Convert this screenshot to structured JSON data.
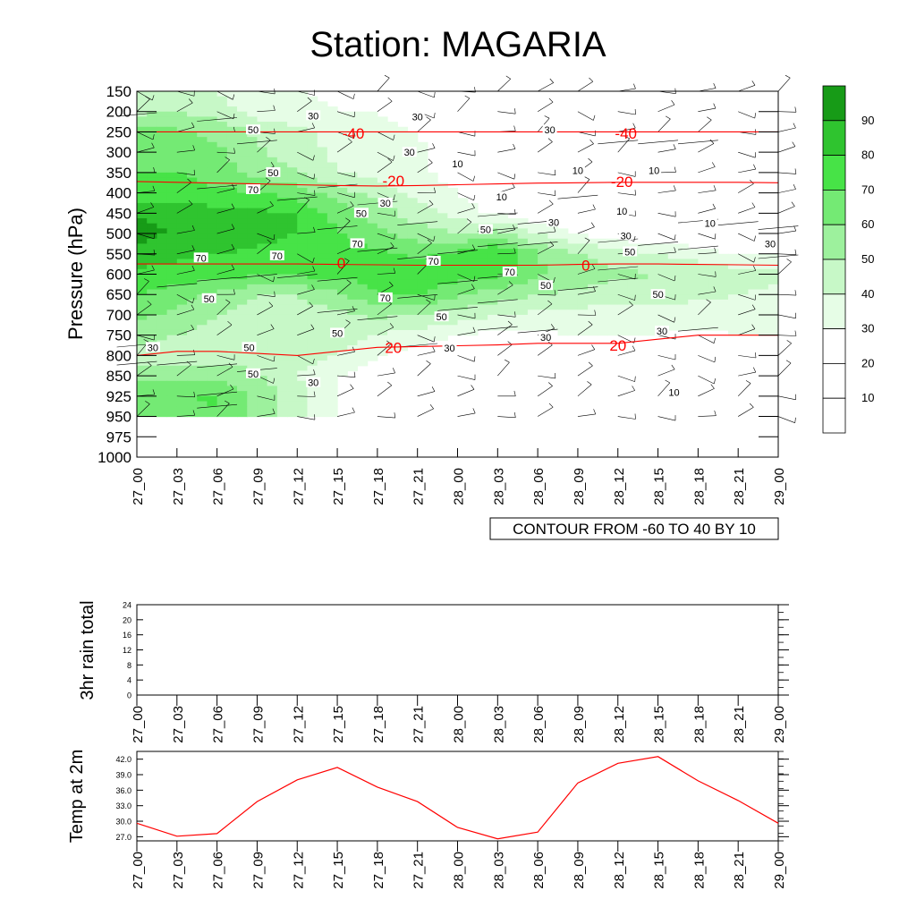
{
  "title": "Station: MAGARIA",
  "colors": {
    "green_levels": [
      "#ffffff",
      "#ffffff",
      "#ffffff",
      "#e6fde6",
      "#c7f8c7",
      "#9df19d",
      "#74ea74",
      "#47e347",
      "#2fc42f",
      "#179b17"
    ],
    "temperature_contour": "#ff0000",
    "rh_contour": "#000000",
    "temp_line": "#ff0000"
  },
  "chart_data": [
    {
      "type": "heatmap",
      "name": "rh-time-height",
      "ylabel": "Pressure (hPa)",
      "pressure_levels": [
        150,
        200,
        250,
        300,
        350,
        400,
        450,
        500,
        550,
        600,
        650,
        700,
        750,
        800,
        850,
        925,
        950,
        975,
        1000
      ],
      "time_labels": [
        "27_00",
        "27_03",
        "27_06",
        "27_09",
        "27_12",
        "27_15",
        "27_18",
        "27_21",
        "28_00",
        "28_03",
        "28_06",
        "28_09",
        "28_12",
        "28_15",
        "28_18",
        "28_21",
        "29_00"
      ],
      "colorbar": {
        "levels": [
          10,
          20,
          30,
          40,
          50,
          60,
          70,
          80,
          90
        ],
        "labels": [
          "10",
          "20",
          "30",
          "40",
          "50",
          "60",
          "70",
          "80",
          "90"
        ]
      },
      "contour_info": "CONTOUR FROM -60 TO 40 BY 10",
      "rh_grid": [
        [
          40,
          42,
          40,
          32,
          30,
          28,
          30,
          25,
          20,
          18,
          18,
          20,
          22,
          20,
          20,
          22,
          22
        ],
        [
          48,
          50,
          45,
          36,
          32,
          30,
          30,
          25,
          20,
          15,
          15,
          18,
          20,
          18,
          18,
          20,
          22
        ],
        [
          62,
          62,
          58,
          48,
          42,
          36,
          34,
          30,
          22,
          15,
          12,
          12,
          12,
          12,
          12,
          12,
          15
        ],
        [
          65,
          65,
          62,
          52,
          45,
          38,
          35,
          32,
          25,
          15,
          10,
          10,
          8,
          8,
          8,
          10,
          10
        ],
        [
          70,
          70,
          65,
          55,
          50,
          40,
          36,
          32,
          25,
          15,
          10,
          8,
          5,
          5,
          5,
          8,
          8
        ],
        [
          75,
          75,
          72,
          70,
          66,
          55,
          45,
          38,
          30,
          20,
          12,
          8,
          5,
          5,
          5,
          5,
          5
        ],
        [
          88,
          86,
          84,
          82,
          80,
          65,
          55,
          45,
          35,
          28,
          22,
          18,
          10,
          10,
          5,
          5,
          5
        ],
        [
          95,
          88,
          86,
          84,
          80,
          72,
          62,
          55,
          50,
          55,
          40,
          30,
          22,
          20,
          18,
          15,
          12
        ],
        [
          85,
          82,
          80,
          78,
          76,
          75,
          72,
          68,
          72,
          82,
          60,
          50,
          45,
          40,
          35,
          30,
          28
        ],
        [
          78,
          76,
          74,
          72,
          72,
          74,
          75,
          80,
          75,
          72,
          62,
          55,
          52,
          50,
          48,
          45,
          42
        ],
        [
          70,
          65,
          58,
          50,
          50,
          58,
          70,
          72,
          62,
          55,
          50,
          48,
          45,
          45,
          42,
          40,
          38
        ],
        [
          62,
          58,
          50,
          45,
          45,
          48,
          52,
          50,
          45,
          40,
          38,
          36,
          35,
          35,
          35,
          35,
          35
        ],
        [
          55,
          50,
          45,
          40,
          40,
          45,
          40,
          35,
          30,
          25,
          28,
          30,
          30,
          30,
          28,
          30,
          30
        ],
        [
          45,
          45,
          45,
          45,
          48,
          40,
          30,
          25,
          20,
          20,
          20,
          22,
          22,
          22,
          20,
          22,
          22
        ],
        [
          58,
          58,
          55,
          52,
          40,
          30,
          25,
          20,
          15,
          15,
          15,
          18,
          18,
          18,
          15,
          18,
          18
        ],
        [
          65,
          68,
          72,
          58,
          45,
          30,
          25,
          20,
          15,
          15,
          15,
          18,
          18,
          18,
          15,
          15,
          15
        ],
        [
          60,
          64,
          68,
          55,
          42,
          28,
          22,
          18,
          15,
          15,
          12,
          15,
          15,
          15,
          12,
          12,
          12
        ],
        [
          null,
          null,
          null,
          null,
          null,
          null,
          null,
          null,
          null,
          null,
          null,
          null,
          null,
          null,
          null,
          null,
          null
        ],
        [
          null,
          null,
          null,
          null,
          null,
          null,
          null,
          null,
          null,
          null,
          null,
          null,
          null,
          null,
          null,
          null,
          null
        ]
      ],
      "temperature_contours": [
        {
          "label": "-40",
          "pressure": [
            250,
            250,
            250,
            250,
            250,
            250,
            250,
            250,
            250,
            250,
            250,
            250,
            250,
            250,
            250,
            250,
            250
          ]
        },
        {
          "label": "-20",
          "pressure": [
            372,
            374,
            376,
            378,
            380,
            382,
            383,
            382,
            380,
            378,
            376,
            375,
            374,
            374,
            374,
            374,
            375
          ]
        },
        {
          "label": "0",
          "pressure": [
            575,
            575,
            575,
            575,
            575,
            576,
            577,
            578,
            578,
            578,
            578,
            576,
            575,
            575,
            576,
            577,
            578
          ]
        },
        {
          "label": "20",
          "pressure": [
            800,
            790,
            790,
            795,
            800,
            790,
            780,
            778,
            776,
            774,
            770,
            770,
            770,
            760,
            750,
            750,
            750
          ]
        }
      ],
      "labels_rh": [
        {
          "t": 4.4,
          "p": 210,
          "text": "30"
        },
        {
          "t": 7.0,
          "p": 213,
          "text": "30"
        },
        {
          "t": 10.3,
          "p": 245,
          "text": "30"
        },
        {
          "t": 2.9,
          "p": 245,
          "text": "50"
        },
        {
          "t": 6.8,
          "p": 300,
          "text": "30"
        },
        {
          "t": 8.0,
          "p": 328,
          "text": "10"
        },
        {
          "t": 3.4,
          "p": 350,
          "text": "50"
        },
        {
          "t": 11.0,
          "p": 345,
          "text": "10"
        },
        {
          "t": 12.9,
          "p": 345,
          "text": "10"
        },
        {
          "t": 2.9,
          "p": 392,
          "text": "70"
        },
        {
          "t": 6.2,
          "p": 425,
          "text": "30"
        },
        {
          "t": 9.1,
          "p": 410,
          "text": "10"
        },
        {
          "t": 12.1,
          "p": 445,
          "text": "10"
        },
        {
          "t": 5.6,
          "p": 450,
          "text": "50"
        },
        {
          "t": 10.4,
          "p": 472,
          "text": "30"
        },
        {
          "t": 12.2,
          "p": 505,
          "text": "30"
        },
        {
          "t": 8.7,
          "p": 490,
          "text": "50"
        },
        {
          "t": 14.3,
          "p": 475,
          "text": "10"
        },
        {
          "t": 15.8,
          "p": 525,
          "text": "30"
        },
        {
          "t": 5.5,
          "p": 525,
          "text": "70"
        },
        {
          "t": 3.5,
          "p": 555,
          "text": "70"
        },
        {
          "t": 1.6,
          "p": 560,
          "text": "70"
        },
        {
          "t": 12.3,
          "p": 545,
          "text": "50"
        },
        {
          "t": 7.4,
          "p": 568,
          "text": "70"
        },
        {
          "t": 9.3,
          "p": 595,
          "text": "70"
        },
        {
          "t": 10.2,
          "p": 628,
          "text": "50"
        },
        {
          "t": 6.2,
          "p": 658,
          "text": "70"
        },
        {
          "t": 13.0,
          "p": 650,
          "text": "50"
        },
        {
          "t": 1.8,
          "p": 660,
          "text": "50"
        },
        {
          "t": 7.6,
          "p": 705,
          "text": "50"
        },
        {
          "t": 5.0,
          "p": 745,
          "text": "50"
        },
        {
          "t": 10.2,
          "p": 755,
          "text": "30"
        },
        {
          "t": 13.1,
          "p": 740,
          "text": "30"
        },
        {
          "t": 0.4,
          "p": 780,
          "text": "30"
        },
        {
          "t": 2.8,
          "p": 780,
          "text": "50"
        },
        {
          "t": 7.8,
          "p": 782,
          "text": "30"
        },
        {
          "t": 2.9,
          "p": 845,
          "text": "50"
        },
        {
          "t": 4.4,
          "p": 875,
          "text": "30"
        },
        {
          "t": 13.4,
          "p": 910,
          "text": "10"
        }
      ],
      "labels_temp": [
        {
          "t": 5.4,
          "p": 253,
          "text": "-40"
        },
        {
          "t": 12.2,
          "p": 253,
          "text": "-40"
        },
        {
          "t": 6.4,
          "p": 370,
          "text": "-20"
        },
        {
          "t": 12.1,
          "p": 372,
          "text": "-20"
        },
        {
          "t": 5.1,
          "p": 573,
          "text": "0"
        },
        {
          "t": 11.2,
          "p": 578,
          "text": "0"
        },
        {
          "t": 6.4,
          "p": 780,
          "text": "20"
        },
        {
          "t": 12.0,
          "p": 775,
          "text": "20"
        }
      ]
    },
    {
      "type": "line",
      "name": "3hr-rain",
      "ylabel": "3hr rain total",
      "ylim": [
        0,
        24
      ],
      "yticks": [
        "0",
        "4",
        "8",
        "12",
        "16",
        "20",
        "24"
      ],
      "x": [
        "27_00",
        "27_03",
        "27_06",
        "27_09",
        "27_12",
        "27_15",
        "27_18",
        "27_21",
        "28_00",
        "28_03",
        "28_06",
        "28_09",
        "28_12",
        "28_15",
        "28_18",
        "28_21",
        "29_00"
      ],
      "values": [
        0,
        0,
        0,
        0,
        0,
        0,
        0,
        0,
        0,
        0,
        0,
        0,
        0,
        0,
        0,
        0,
        0
      ]
    },
    {
      "type": "line",
      "name": "temp-2m",
      "ylabel": "Temp at 2m",
      "ylim": [
        26.2,
        43.5
      ],
      "yticks": [
        "27.0",
        "30.0",
        "33.0",
        "36.0",
        "39.0",
        "42.0"
      ],
      "x": [
        "27_00",
        "27_03",
        "27_06",
        "27_09",
        "27_12",
        "27_15",
        "27_18",
        "27_21",
        "28_00",
        "28_03",
        "28_06",
        "28_09",
        "28_12",
        "28_15",
        "28_18",
        "28_21",
        "29_00"
      ],
      "values": [
        29.6,
        27.1,
        27.6,
        33.8,
        38.0,
        40.4,
        36.6,
        33.8,
        28.8,
        26.6,
        27.9,
        37.4,
        41.2,
        42.5,
        37.8,
        34.0,
        29.6
      ]
    }
  ]
}
